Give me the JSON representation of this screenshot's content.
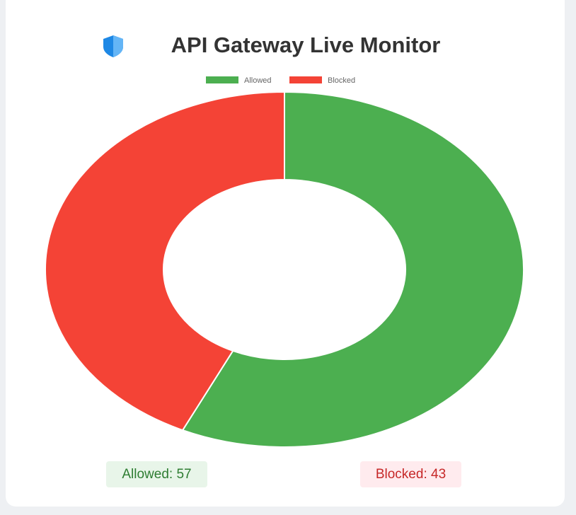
{
  "chart_data": {
    "type": "doughnut",
    "title": "API Gateway Live Monitor",
    "categories": [
      "Allowed",
      "Blocked"
    ],
    "values": [
      57,
      43
    ],
    "colors": [
      "#4caf50",
      "#f44336"
    ],
    "value_labels": [
      "Allowed: 57",
      "Blocked: 43"
    ],
    "legend": "top"
  }
}
